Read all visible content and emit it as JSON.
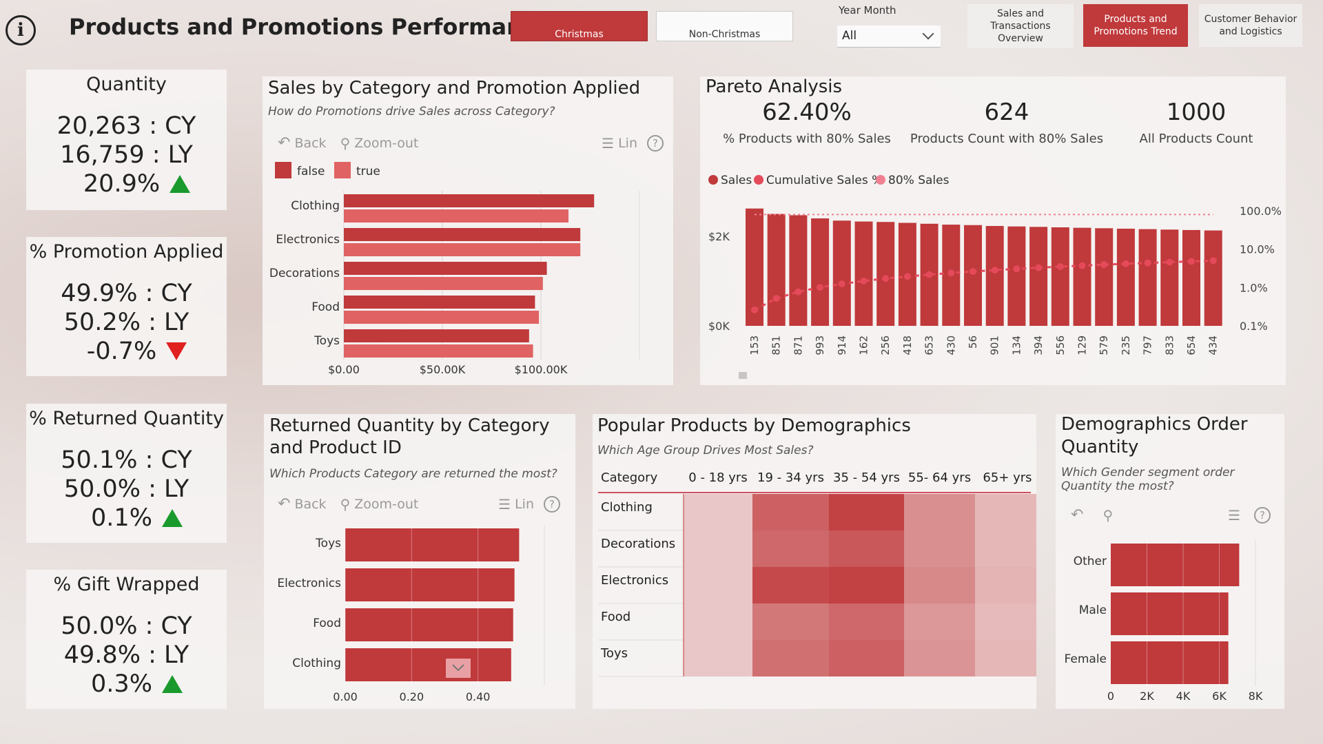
{
  "header": {
    "title": "Products and Promotions Performance",
    "filter_christmas": "Christmas",
    "filter_non_christmas": "Non-Christmas",
    "year_month_label": "Year Month",
    "year_month_value": "All",
    "nav": [
      {
        "label": "Sales and Transactions Overview",
        "active": false
      },
      {
        "label": "Products and Promotions Trend",
        "active": true
      },
      {
        "label": "Customer Behavior and Logistics",
        "active": false
      }
    ]
  },
  "colors": {
    "accent": "#c0393b",
    "accent_light": "#e06262",
    "up": "#1a9a2c",
    "down": "#e01f1f"
  },
  "kpis": [
    {
      "title": "Quantity",
      "cy": "20,263 : CY",
      "ly": "16,759 : LY",
      "delta": "20.9%",
      "direction": "up"
    },
    {
      "title": "% Promotion Applied",
      "cy": "49.9% : CY",
      "ly": "50.2% : LY",
      "delta": "-0.7%",
      "direction": "down"
    },
    {
      "title": "% Returned Quantity",
      "cy": "50.1% : CY",
      "ly": "50.0% : LY",
      "delta": "0.1%",
      "direction": "up"
    },
    {
      "title": "% Gift Wrapped",
      "cy": "50.0% : CY",
      "ly": "49.8% : LY",
      "delta": "0.3%",
      "direction": "up"
    }
  ],
  "toolbar": {
    "back": "Back",
    "zoom_out": "Zoom-out",
    "lin": "Lin"
  },
  "sales_panel": {
    "title": "Sales by Category and Promotion Applied",
    "subtitle": "How do Promotions drive Sales across Category?"
  },
  "pareto_panel": {
    "title": "Pareto Analysis",
    "kpis": [
      {
        "value": "62.40%",
        "label": "% Products with 80% Sales"
      },
      {
        "value": "624",
        "label": "Products Count with 80% Sales"
      },
      {
        "value": "1000",
        "label": "All Products Count"
      }
    ]
  },
  "returned_panel": {
    "title_line1": "Returned Quantity by Category",
    "title_line2": "and Product ID",
    "subtitle": "Which Products Category are returned the most?"
  },
  "popular_panel": {
    "title": "Popular Products by Demographics",
    "subtitle": "Which Age Group Drives Most Sales?"
  },
  "demo_panel": {
    "title_line1": "Demographics Order",
    "title_line2": "Quantity",
    "subtitle_line1": "Which Gender segment order",
    "subtitle_line2": "Quantity the most?"
  },
  "chart_data": [
    {
      "id": "sales_by_category",
      "type": "bar",
      "orientation": "horizontal",
      "categories": [
        "Clothing",
        "Electronics",
        "Decorations",
        "Food",
        "Toys"
      ],
      "series": [
        {
          "name": "false",
          "values": [
            127000,
            120000,
            103000,
            97000,
            94000
          ],
          "color": "#c0393b"
        },
        {
          "name": "true",
          "values": [
            114000,
            120000,
            101000,
            99000,
            96000
          ],
          "color": "#e06262"
        }
      ],
      "xticks": [
        "$0.00",
        "$50.00K",
        "$100.00K"
      ],
      "xlim": [
        0,
        150000
      ],
      "legend": "top-left"
    },
    {
      "id": "pareto",
      "type": "bar",
      "categories": [
        "153",
        "851",
        "871",
        "993",
        "914",
        "162",
        "256",
        "418",
        "653",
        "430",
        "56",
        "901",
        "134",
        "394",
        "556",
        "129",
        "579",
        "235",
        "797",
        "833",
        "654",
        "434"
      ],
      "series": [
        {
          "name": "Sales",
          "values": [
            2620,
            2500,
            2470,
            2400,
            2350,
            2330,
            2320,
            2300,
            2280,
            2260,
            2250,
            2230,
            2220,
            2210,
            2200,
            2190,
            2180,
            2170,
            2160,
            2150,
            2140,
            2130
          ],
          "color": "#c0393b"
        },
        {
          "name": "Cumulative Sales %",
          "values": [
            0.26,
            0.52,
            0.77,
            1.01,
            1.24,
            1.48,
            1.71,
            1.94,
            2.17,
            2.39,
            2.62,
            2.84,
            3.06,
            3.28,
            3.5,
            3.72,
            3.94,
            4.16,
            4.37,
            4.59,
            4.8,
            5.01
          ],
          "color": "#e44a5a"
        },
        {
          "name": "80% Sales",
          "values": [
            80,
            80,
            80,
            80,
            80,
            80,
            80,
            80,
            80,
            80,
            80,
            80,
            80,
            80,
            80,
            80,
            80,
            80,
            80,
            80,
            80,
            80
          ],
          "color": "#f08090"
        }
      ],
      "yticks": [
        "$0K",
        "$2K"
      ],
      "ylim": [
        0,
        2800
      ],
      "y2ticks": [
        "0.1%",
        "1.0%",
        "10.0%",
        "100.0%"
      ],
      "y2scale": "log",
      "legend": "top-left"
    },
    {
      "id": "returned_quantity",
      "type": "bar",
      "orientation": "horizontal",
      "categories": [
        "Toys",
        "Electronics",
        "Food",
        "Clothing"
      ],
      "values": [
        0.524,
        0.51,
        0.506,
        0.5
      ],
      "xticks": [
        "0.00",
        "0.20",
        "0.40"
      ],
      "xlim": [
        0,
        0.6
      ]
    },
    {
      "id": "demographics_heatmap",
      "type": "heatmap",
      "rows": [
        "Clothing",
        "Decorations",
        "Electronics",
        "Food",
        "Toys"
      ],
      "columns": [
        "0 - 18 yrs",
        "19 - 34 yrs",
        "35 - 54 yrs",
        "55- 64 yrs",
        "65+ yrs"
      ],
      "header_label": "Category",
      "values": [
        [
          0.1,
          0.75,
          0.95,
          0.45,
          0.2
        ],
        [
          0.1,
          0.7,
          0.8,
          0.45,
          0.2
        ],
        [
          0.1,
          0.9,
          0.95,
          0.5,
          0.22
        ],
        [
          0.1,
          0.6,
          0.7,
          0.4,
          0.18
        ],
        [
          0.1,
          0.65,
          0.75,
          0.42,
          0.2
        ]
      ]
    },
    {
      "id": "gender_order_quantity",
      "type": "bar",
      "orientation": "horizontal",
      "categories": [
        "Other",
        "Male",
        "Female"
      ],
      "values": [
        7100,
        6500,
        6500
      ],
      "xticks": [
        "0",
        "2K",
        "4K",
        "6K",
        "8K"
      ],
      "xlim": [
        0,
        8000
      ]
    }
  ]
}
